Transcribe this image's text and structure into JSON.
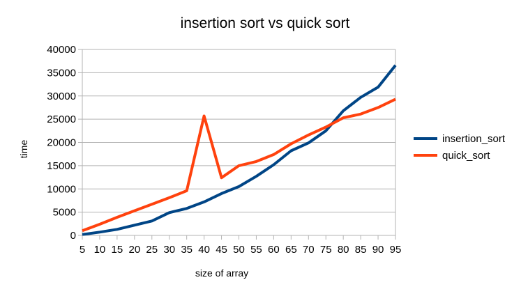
{
  "chart_data": {
    "type": "line",
    "title": "insertion sort vs quick sort",
    "xlabel": "size of array",
    "ylabel": "time",
    "x": [
      5,
      10,
      15,
      20,
      25,
      30,
      35,
      40,
      45,
      50,
      55,
      60,
      65,
      70,
      75,
      80,
      85,
      90,
      95
    ],
    "ylim": [
      0,
      40000
    ],
    "yticks": [
      0,
      5000,
      10000,
      15000,
      20000,
      25000,
      30000,
      35000,
      40000
    ],
    "grid": "horizontal",
    "legend": "right",
    "series": [
      {
        "name": "insertion_sort",
        "color": "#004586",
        "values": [
          200,
          700,
          1300,
          2200,
          3100,
          4900,
          5800,
          7200,
          9000,
          10500,
          12700,
          15200,
          18200,
          19900,
          22500,
          26800,
          29700,
          31900,
          36600
        ]
      },
      {
        "name": "quick_sort",
        "color": "#ff420e",
        "values": [
          1000,
          2400,
          3900,
          5300,
          6700,
          8100,
          9600,
          25700,
          12400,
          15000,
          15900,
          17400,
          19700,
          21600,
          23300,
          25300,
          26100,
          27500,
          29300
        ]
      }
    ]
  }
}
